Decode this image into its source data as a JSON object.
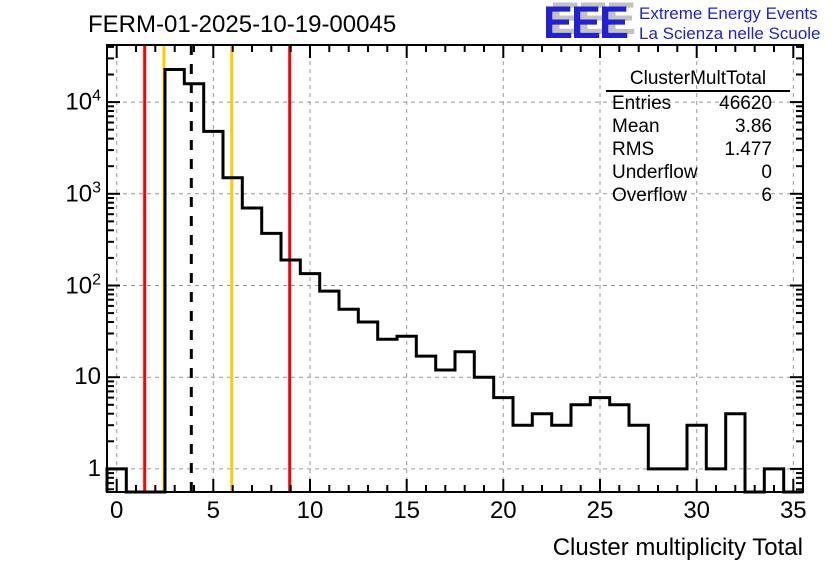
{
  "header": {
    "title": "FERM-01-2025-10-19-00045",
    "logo": {
      "acronym": "EEE",
      "line1": "Extreme Energy Events",
      "line2": "La Scienza nelle Scuole",
      "color": "#2222cc"
    }
  },
  "stats_box": {
    "title": "ClusterMultTotal",
    "rows": [
      {
        "label": "Entries",
        "value": "46620"
      },
      {
        "label": "Mean",
        "value": "3.86"
      },
      {
        "label": "RMS",
        "value": "1.477"
      },
      {
        "label": "Underflow",
        "value": "0"
      },
      {
        "label": "Overflow",
        "value": "6"
      }
    ]
  },
  "chart_data": {
    "type": "bar",
    "title": "FERM-01-2025-10-19-00045",
    "xlabel": "Cluster multiplicity Total",
    "ylabel": "",
    "y_scale": "log",
    "x_range": [
      -0.5,
      35.5
    ],
    "y_range": [
      0.56,
      42000
    ],
    "grid": true,
    "line_color": "#000000",
    "grid_color": "#999999",
    "bin_centers": [
      0,
      1,
      2,
      3,
      4,
      5,
      6,
      7,
      8,
      9,
      10,
      11,
      12,
      13,
      14,
      15,
      16,
      17,
      18,
      19,
      20,
      21,
      22,
      23,
      24,
      25,
      26,
      27,
      28,
      29,
      30,
      31,
      32,
      33,
      34,
      35
    ],
    "counts": [
      1,
      0,
      0,
      22700,
      15900,
      4800,
      1500,
      700,
      370,
      190,
      135,
      87,
      55,
      40,
      26,
      28,
      17,
      12,
      19,
      10,
      6,
      3,
      4,
      3,
      5,
      6,
      5,
      3,
      1,
      1,
      3,
      1,
      4,
      0,
      1,
      0
    ],
    "x_major_ticks": [
      0,
      5,
      10,
      15,
      20,
      25,
      30,
      35
    ],
    "x_tick_labels": [
      "0",
      "5",
      "10",
      "15",
      "20",
      "25",
      "30",
      "35"
    ],
    "y_major_ticks": [
      1,
      10,
      100,
      1000,
      10000
    ],
    "y_tick_labels": [
      "1",
      "10",
      "10^2",
      "10^3",
      "10^4"
    ],
    "marker_lines": [
      {
        "x": 1.45,
        "color": "#ff0000",
        "style": "solid",
        "name": "red-low-threshold"
      },
      {
        "x": 2.45,
        "color": "#ffcc00",
        "style": "solid",
        "name": "yellow-low-threshold"
      },
      {
        "x": 3.86,
        "color": "#000000",
        "style": "dashed",
        "name": "mean-line"
      },
      {
        "x": 5.95,
        "color": "#ffcc00",
        "style": "solid",
        "name": "yellow-high-threshold"
      },
      {
        "x": 8.95,
        "color": "#ff0000",
        "style": "solid",
        "name": "red-high-threshold"
      }
    ]
  }
}
